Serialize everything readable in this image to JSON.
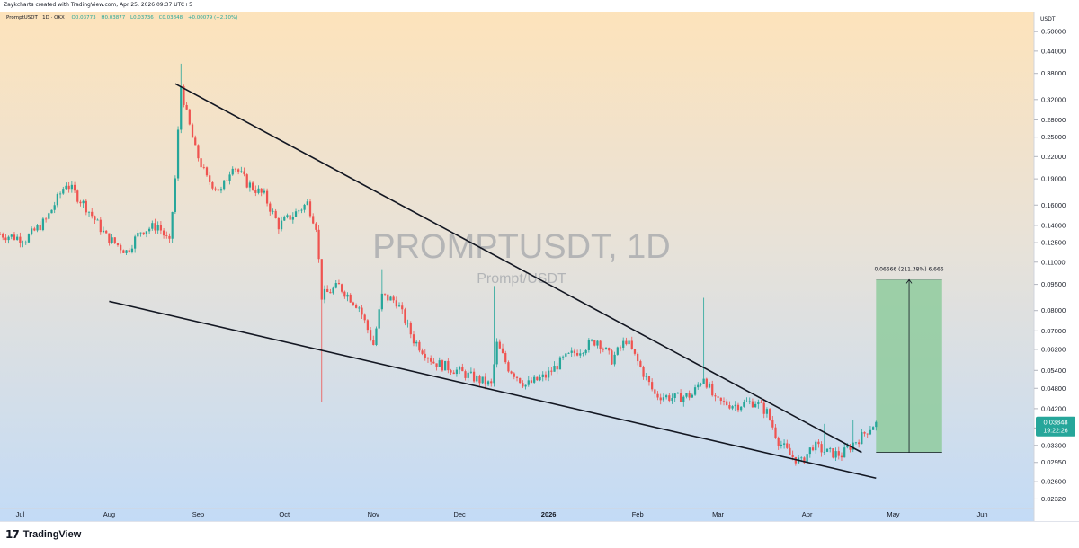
{
  "header": {
    "credit": "Zaykcharts created with TradingView.com, Apr 25, 2026 09:37 UTC+5"
  },
  "legend": {
    "symbol": "PromptUSDT · 1D · OKX",
    "open": "O0.03773",
    "high": "H0.03877",
    "low": "L0.03736",
    "close": "C0.03848",
    "change": "+0.00079 (+2.10%)"
  },
  "watermark": {
    "symbol": "PROMPTUSDT, 1D",
    "name": "Prompt/USDT"
  },
  "footer": {
    "brand": "TradingView",
    "logo_mark": "17"
  },
  "colors": {
    "up": "#26a69a",
    "down": "#ef5350",
    "bg_top": "#fde3bb",
    "bg_bottom": "#c3dbf6",
    "target_fill": "#8fcb9e",
    "price_label": "#26a69a"
  },
  "chart_data": {
    "type": "candlestick",
    "currency": "USDT",
    "y_scale": "log",
    "ylim": [
      0.0218,
      0.57
    ],
    "y_ticks": [
      "0.50000",
      "0.44000",
      "0.38000",
      "0.32000",
      "0.28000",
      "0.25000",
      "0.22000",
      "0.19000",
      "0.16000",
      "0.14000",
      "0.12500",
      "0.11000",
      "0.09500",
      "0.08000",
      "0.07000",
      "0.06200",
      "0.05400",
      "0.04800",
      "0.04200",
      "0.03700",
      "0.03300",
      "0.02950",
      "0.02600",
      "0.02320"
    ],
    "x_ticks": [
      "Jul",
      "Aug",
      "Sep",
      "Oct",
      "Nov",
      "Dec",
      "2026",
      "Feb",
      "Mar",
      "Apr",
      "May",
      "Jun"
    ],
    "x_tick_dates": [
      "2025-07-01",
      "2025-08-01",
      "2025-09-01",
      "2025-10-01",
      "2025-11-01",
      "2025-12-01",
      "2026-01-01",
      "2026-02-01",
      "2026-03-01",
      "2026-04-01",
      "2026-05-01",
      "2026-06-01"
    ],
    "x_range": [
      "2025-06-24",
      "2026-06-19"
    ],
    "last_price": {
      "value": "0.03848",
      "countdown": "19:22:26"
    },
    "price_path": [
      [
        "2025-06-24",
        0.132
      ],
      [
        "2025-07-03",
        0.128
      ],
      [
        "2025-07-10",
        0.145
      ],
      [
        "2025-07-17",
        0.185
      ],
      [
        "2025-07-24",
        0.158
      ],
      [
        "2025-07-31",
        0.13
      ],
      [
        "2025-08-07",
        0.118
      ],
      [
        "2025-08-12",
        0.135
      ],
      [
        "2025-08-18",
        0.14
      ],
      [
        "2025-08-22",
        0.124
      ],
      [
        "2025-08-24",
        0.19
      ],
      [
        "2025-08-26",
        0.35
      ],
      [
        "2025-08-28",
        0.29
      ],
      [
        "2025-08-31",
        0.23
      ],
      [
        "2025-09-04",
        0.19
      ],
      [
        "2025-09-09",
        0.175
      ],
      [
        "2025-09-13",
        0.21
      ],
      [
        "2025-09-18",
        0.185
      ],
      [
        "2025-09-24",
        0.17
      ],
      [
        "2025-09-29",
        0.14
      ],
      [
        "2025-10-04",
        0.15
      ],
      [
        "2025-10-09",
        0.162
      ],
      [
        "2025-10-12",
        0.14
      ],
      [
        "2025-10-14",
        0.088
      ],
      [
        "2025-10-20",
        0.094
      ],
      [
        "2025-10-27",
        0.082
      ],
      [
        "2025-11-01",
        0.064
      ],
      [
        "2025-11-04",
        0.088
      ],
      [
        "2025-11-09",
        0.085
      ],
      [
        "2025-11-15",
        0.066
      ],
      [
        "2025-11-22",
        0.057
      ],
      [
        "2025-11-30",
        0.054
      ],
      [
        "2025-12-07",
        0.051
      ],
      [
        "2025-12-12",
        0.049
      ],
      [
        "2025-12-14",
        0.064
      ],
      [
        "2025-12-18",
        0.055
      ],
      [
        "2025-12-24",
        0.049
      ],
      [
        "2025-12-31",
        0.052
      ],
      [
        "2026-01-06",
        0.058
      ],
      [
        "2026-01-12",
        0.062
      ],
      [
        "2026-01-18",
        0.066
      ],
      [
        "2026-01-23",
        0.058
      ],
      [
        "2026-01-28",
        0.066
      ],
      [
        "2026-02-02",
        0.055
      ],
      [
        "2026-02-07",
        0.046
      ],
      [
        "2026-02-14",
        0.045
      ],
      [
        "2026-02-20",
        0.046
      ],
      [
        "2026-02-24",
        0.052
      ],
      [
        "2026-02-28",
        0.044
      ],
      [
        "2026-03-07",
        0.043
      ],
      [
        "2026-03-14",
        0.044
      ],
      [
        "2026-03-18",
        0.041
      ],
      [
        "2026-03-22",
        0.034
      ],
      [
        "2026-03-26",
        0.031
      ],
      [
        "2026-03-30",
        0.0295
      ],
      [
        "2026-04-03",
        0.033
      ],
      [
        "2026-04-08",
        0.0315
      ],
      [
        "2026-04-13",
        0.031
      ],
      [
        "2026-04-17",
        0.0335
      ],
      [
        "2026-04-20",
        0.035
      ],
      [
        "2026-04-22",
        0.0365
      ],
      [
        "2026-04-25",
        0.03848
      ]
    ],
    "wicks": [
      [
        "2025-08-26",
        0.405
      ],
      [
        "2025-10-14",
        0.044
      ],
      [
        "2025-11-04",
        0.105
      ],
      [
        "2025-12-13",
        0.094
      ],
      [
        "2026-02-24",
        0.087
      ],
      [
        "2026-04-07",
        0.038
      ],
      [
        "2026-04-17",
        0.039
      ]
    ],
    "trendlines": [
      {
        "from": [
          "2025-08-24",
          0.355
        ],
        "to": [
          "2026-04-20",
          0.0315
        ]
      },
      {
        "from": [
          "2025-08-01",
          0.085
        ],
        "to": [
          "2026-04-25",
          0.0266
        ]
      }
    ],
    "projection": {
      "label": "0.06666 (211.38%) 6,666",
      "from_date": "2026-04-25",
      "to_date": "2026-05-18",
      "bottom_price": 0.0315,
      "top_price": 0.098
    }
  }
}
